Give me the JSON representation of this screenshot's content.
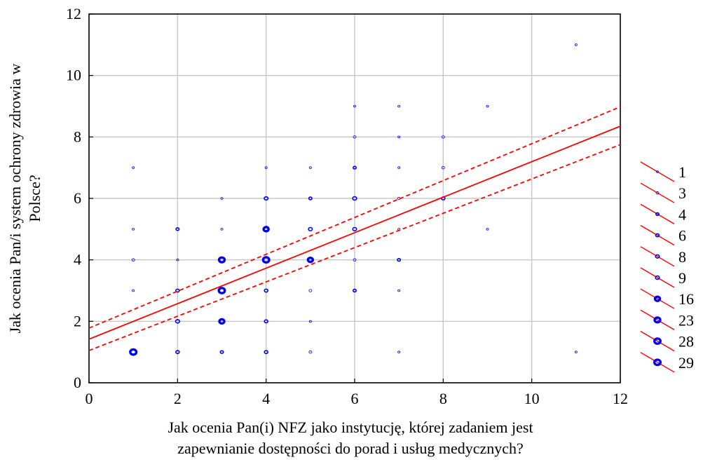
{
  "chart_data": {
    "type": "scatter",
    "title": "",
    "xlabel_lines": [
      "Jak ocenia Pan(i) NFZ jako instytucję, której zadaniem jest",
      "zapewnianie dostępności do porad i usług medycznych?"
    ],
    "ylabel_lines": [
      "Jak ocenia Pan/i system ochrony zdrowia w",
      "Polsce?"
    ],
    "xlim": [
      0,
      12
    ],
    "ylim": [
      0,
      12
    ],
    "xticks": [
      0,
      2,
      4,
      6,
      8,
      10,
      12
    ],
    "yticks": [
      0,
      2,
      4,
      6,
      8,
      10,
      12
    ],
    "grid": true,
    "legend_position": "right",
    "colors": {
      "points": "#0000e6",
      "regression": "#ff0000",
      "grid": "#c8c8c8"
    },
    "points": [
      {
        "x": 1,
        "y": 1,
        "n": 29
      },
      {
        "x": 2,
        "y": 1,
        "n": 6
      },
      {
        "x": 3,
        "y": 1,
        "n": 4
      },
      {
        "x": 4,
        "y": 1,
        "n": 6
      },
      {
        "x": 5,
        "y": 1,
        "n": 3
      },
      {
        "x": 7,
        "y": 1,
        "n": 1
      },
      {
        "x": 11,
        "y": 1,
        "n": 1
      },
      {
        "x": 2,
        "y": 2,
        "n": 9
      },
      {
        "x": 3,
        "y": 2,
        "n": 16
      },
      {
        "x": 4,
        "y": 2,
        "n": 6
      },
      {
        "x": 5,
        "y": 2,
        "n": 1
      },
      {
        "x": 2,
        "y": 3,
        "n": 6
      },
      {
        "x": 3,
        "y": 3,
        "n": 28
      },
      {
        "x": 4,
        "y": 3,
        "n": 6
      },
      {
        "x": 5,
        "y": 3,
        "n": 3
      },
      {
        "x": 6,
        "y": 3,
        "n": 4
      },
      {
        "x": 7,
        "y": 3,
        "n": 1
      },
      {
        "x": 1,
        "y": 3,
        "n": 1
      },
      {
        "x": 1,
        "y": 4,
        "n": 3
      },
      {
        "x": 2,
        "y": 4,
        "n": 1
      },
      {
        "x": 3,
        "y": 4,
        "n": 23
      },
      {
        "x": 4,
        "y": 4,
        "n": 29
      },
      {
        "x": 5,
        "y": 4,
        "n": 16
      },
      {
        "x": 6,
        "y": 4,
        "n": 3
      },
      {
        "x": 7,
        "y": 4,
        "n": 4
      },
      {
        "x": 1,
        "y": 5,
        "n": 1
      },
      {
        "x": 2,
        "y": 5,
        "n": 4
      },
      {
        "x": 3,
        "y": 5,
        "n": 1
      },
      {
        "x": 4,
        "y": 5,
        "n": 16
      },
      {
        "x": 5,
        "y": 5,
        "n": 8
      },
      {
        "x": 6,
        "y": 5,
        "n": 8
      },
      {
        "x": 7,
        "y": 5,
        "n": 1
      },
      {
        "x": 9,
        "y": 5,
        "n": 1
      },
      {
        "x": 3,
        "y": 6,
        "n": 1
      },
      {
        "x": 4,
        "y": 6,
        "n": 8
      },
      {
        "x": 5,
        "y": 6,
        "n": 4
      },
      {
        "x": 6,
        "y": 6,
        "n": 9
      },
      {
        "x": 7,
        "y": 6,
        "n": 3
      },
      {
        "x": 8,
        "y": 6,
        "n": 6
      },
      {
        "x": 1,
        "y": 7,
        "n": 1
      },
      {
        "x": 4,
        "y": 7,
        "n": 1
      },
      {
        "x": 5,
        "y": 7,
        "n": 1
      },
      {
        "x": 6,
        "y": 7,
        "n": 4
      },
      {
        "x": 7,
        "y": 7,
        "n": 1
      },
      {
        "x": 8,
        "y": 7,
        "n": 3
      },
      {
        "x": 6,
        "y": 8,
        "n": 3
      },
      {
        "x": 7,
        "y": 8,
        "n": 1
      },
      {
        "x": 8,
        "y": 8,
        "n": 3
      },
      {
        "x": 6,
        "y": 9,
        "n": 1
      },
      {
        "x": 7,
        "y": 9,
        "n": 1
      },
      {
        "x": 9,
        "y": 9,
        "n": 1
      },
      {
        "x": 11,
        "y": 11,
        "n": 1
      }
    ],
    "regression": {
      "line": [
        [
          0,
          1.42
        ],
        [
          12,
          8.35
        ]
      ],
      "ci_upper": [
        [
          0,
          1.78
        ],
        [
          12,
          8.98
        ]
      ],
      "ci_lower": [
        [
          0,
          1.05
        ],
        [
          12,
          7.75
        ]
      ]
    },
    "legend": [
      {
        "label": "1",
        "n": 1
      },
      {
        "label": "3",
        "n": 3
      },
      {
        "label": "4",
        "n": 4
      },
      {
        "label": "6",
        "n": 6
      },
      {
        "label": "8",
        "n": 8
      },
      {
        "label": "9",
        "n": 9
      },
      {
        "label": "16",
        "n": 16
      },
      {
        "label": "23",
        "n": 23
      },
      {
        "label": "28",
        "n": 28
      },
      {
        "label": "29",
        "n": 29
      }
    ]
  }
}
